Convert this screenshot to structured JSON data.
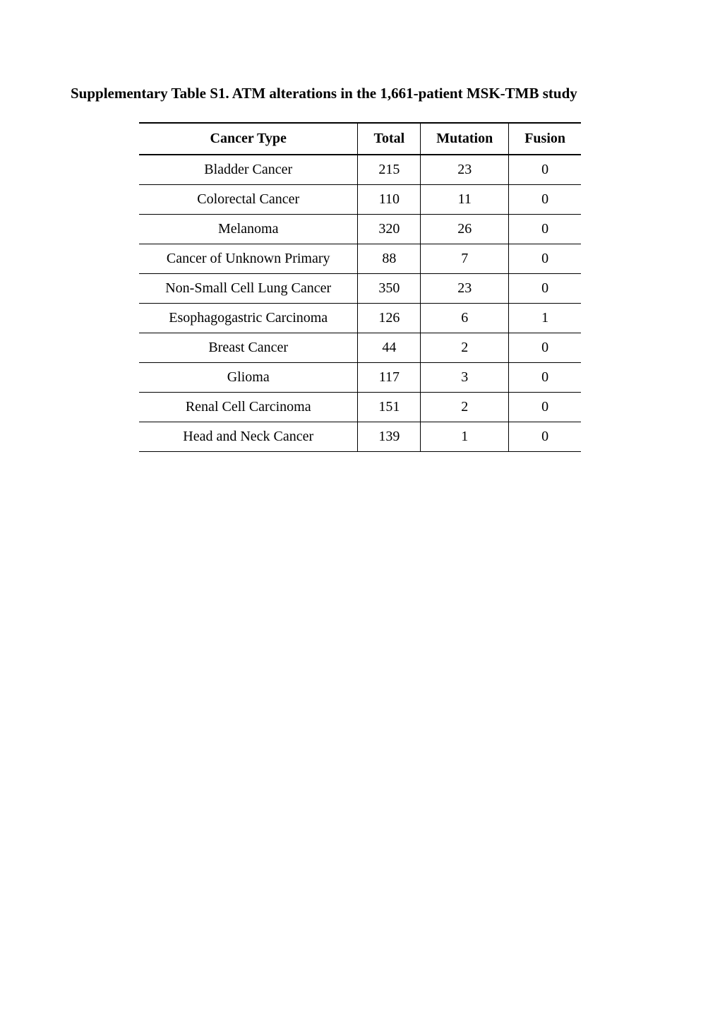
{
  "title": "Supplementary Table S1. ATM alterations in the 1,661-patient MSK-TMB study",
  "table": {
    "columns": [
      {
        "label": "Cancer Type",
        "key": "cancer_type"
      },
      {
        "label": "Total",
        "key": "total"
      },
      {
        "label": "Mutation",
        "key": "mutation"
      },
      {
        "label": "Fusion",
        "key": "fusion"
      }
    ],
    "rows": [
      {
        "cancer_type": "Bladder Cancer",
        "total": "215",
        "mutation": "23",
        "fusion": "0"
      },
      {
        "cancer_type": "Colorectal Cancer",
        "total": "110",
        "mutation": "11",
        "fusion": "0"
      },
      {
        "cancer_type": "Melanoma",
        "total": "320",
        "mutation": "26",
        "fusion": "0"
      },
      {
        "cancer_type": "Cancer of Unknown Primary",
        "total": "88",
        "mutation": "7",
        "fusion": "0"
      },
      {
        "cancer_type": "Non-Small Cell Lung Cancer",
        "total": "350",
        "mutation": "23",
        "fusion": "0"
      },
      {
        "cancer_type": "Esophagogastric Carcinoma",
        "total": "126",
        "mutation": "6",
        "fusion": "1"
      },
      {
        "cancer_type": "Breast Cancer",
        "total": "44",
        "mutation": "2",
        "fusion": "0"
      },
      {
        "cancer_type": "Glioma",
        "total": "117",
        "mutation": "3",
        "fusion": "0"
      },
      {
        "cancer_type": "Renal Cell Carcinoma",
        "total": "151",
        "mutation": "2",
        "fusion": "0"
      },
      {
        "cancer_type": "Head and Neck Cancer",
        "total": "139",
        "mutation": "1",
        "fusion": "0"
      }
    ]
  },
  "styling": {
    "background_color": "#ffffff",
    "text_color": "#000000",
    "border_color": "#000000",
    "title_fontsize": 21,
    "title_fontweight": "bold",
    "header_fontsize": 20,
    "header_fontweight": "bold",
    "cell_fontsize": 20,
    "font_family": "Times New Roman"
  }
}
